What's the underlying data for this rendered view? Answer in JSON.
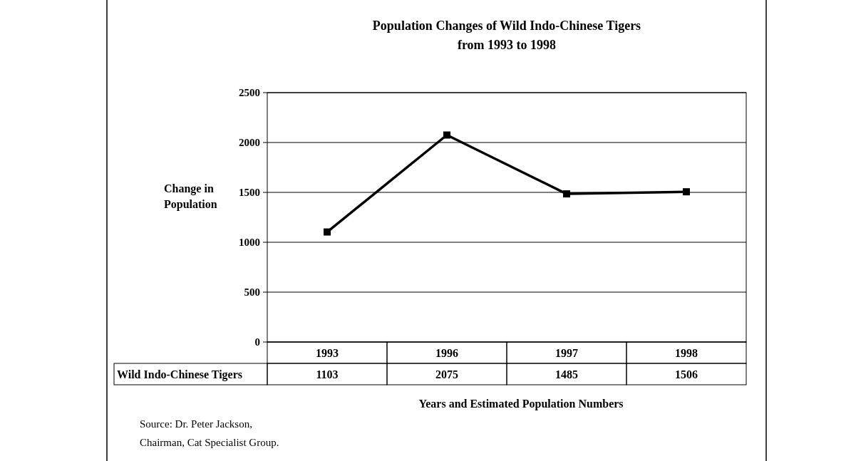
{
  "chart_data": {
    "type": "line",
    "title": "Population Changes of Wild Indo-Chinese Tigers from 1993 to 1998",
    "xlabel": "Years and Estimated Population Numbers",
    "ylabel": "Change in Population",
    "categories": [
      "1993",
      "1996",
      "1997",
      "1998"
    ],
    "series": [
      {
        "name": "Wild Indo-Chinese Tigers",
        "color": "#000000",
        "values": [
          1103,
          2075,
          1485,
          1506
        ]
      }
    ],
    "ylim": [
      0,
      2500
    ],
    "yticks": [
      0,
      500,
      1000,
      1500,
      2000,
      2500
    ],
    "grid": "y",
    "marker": "square",
    "line_style": "solid",
    "data_labels": true,
    "annotations": [
      "Source: Dr. Peter Jackson, Chairman, Cat Specialist Group."
    ]
  }
}
